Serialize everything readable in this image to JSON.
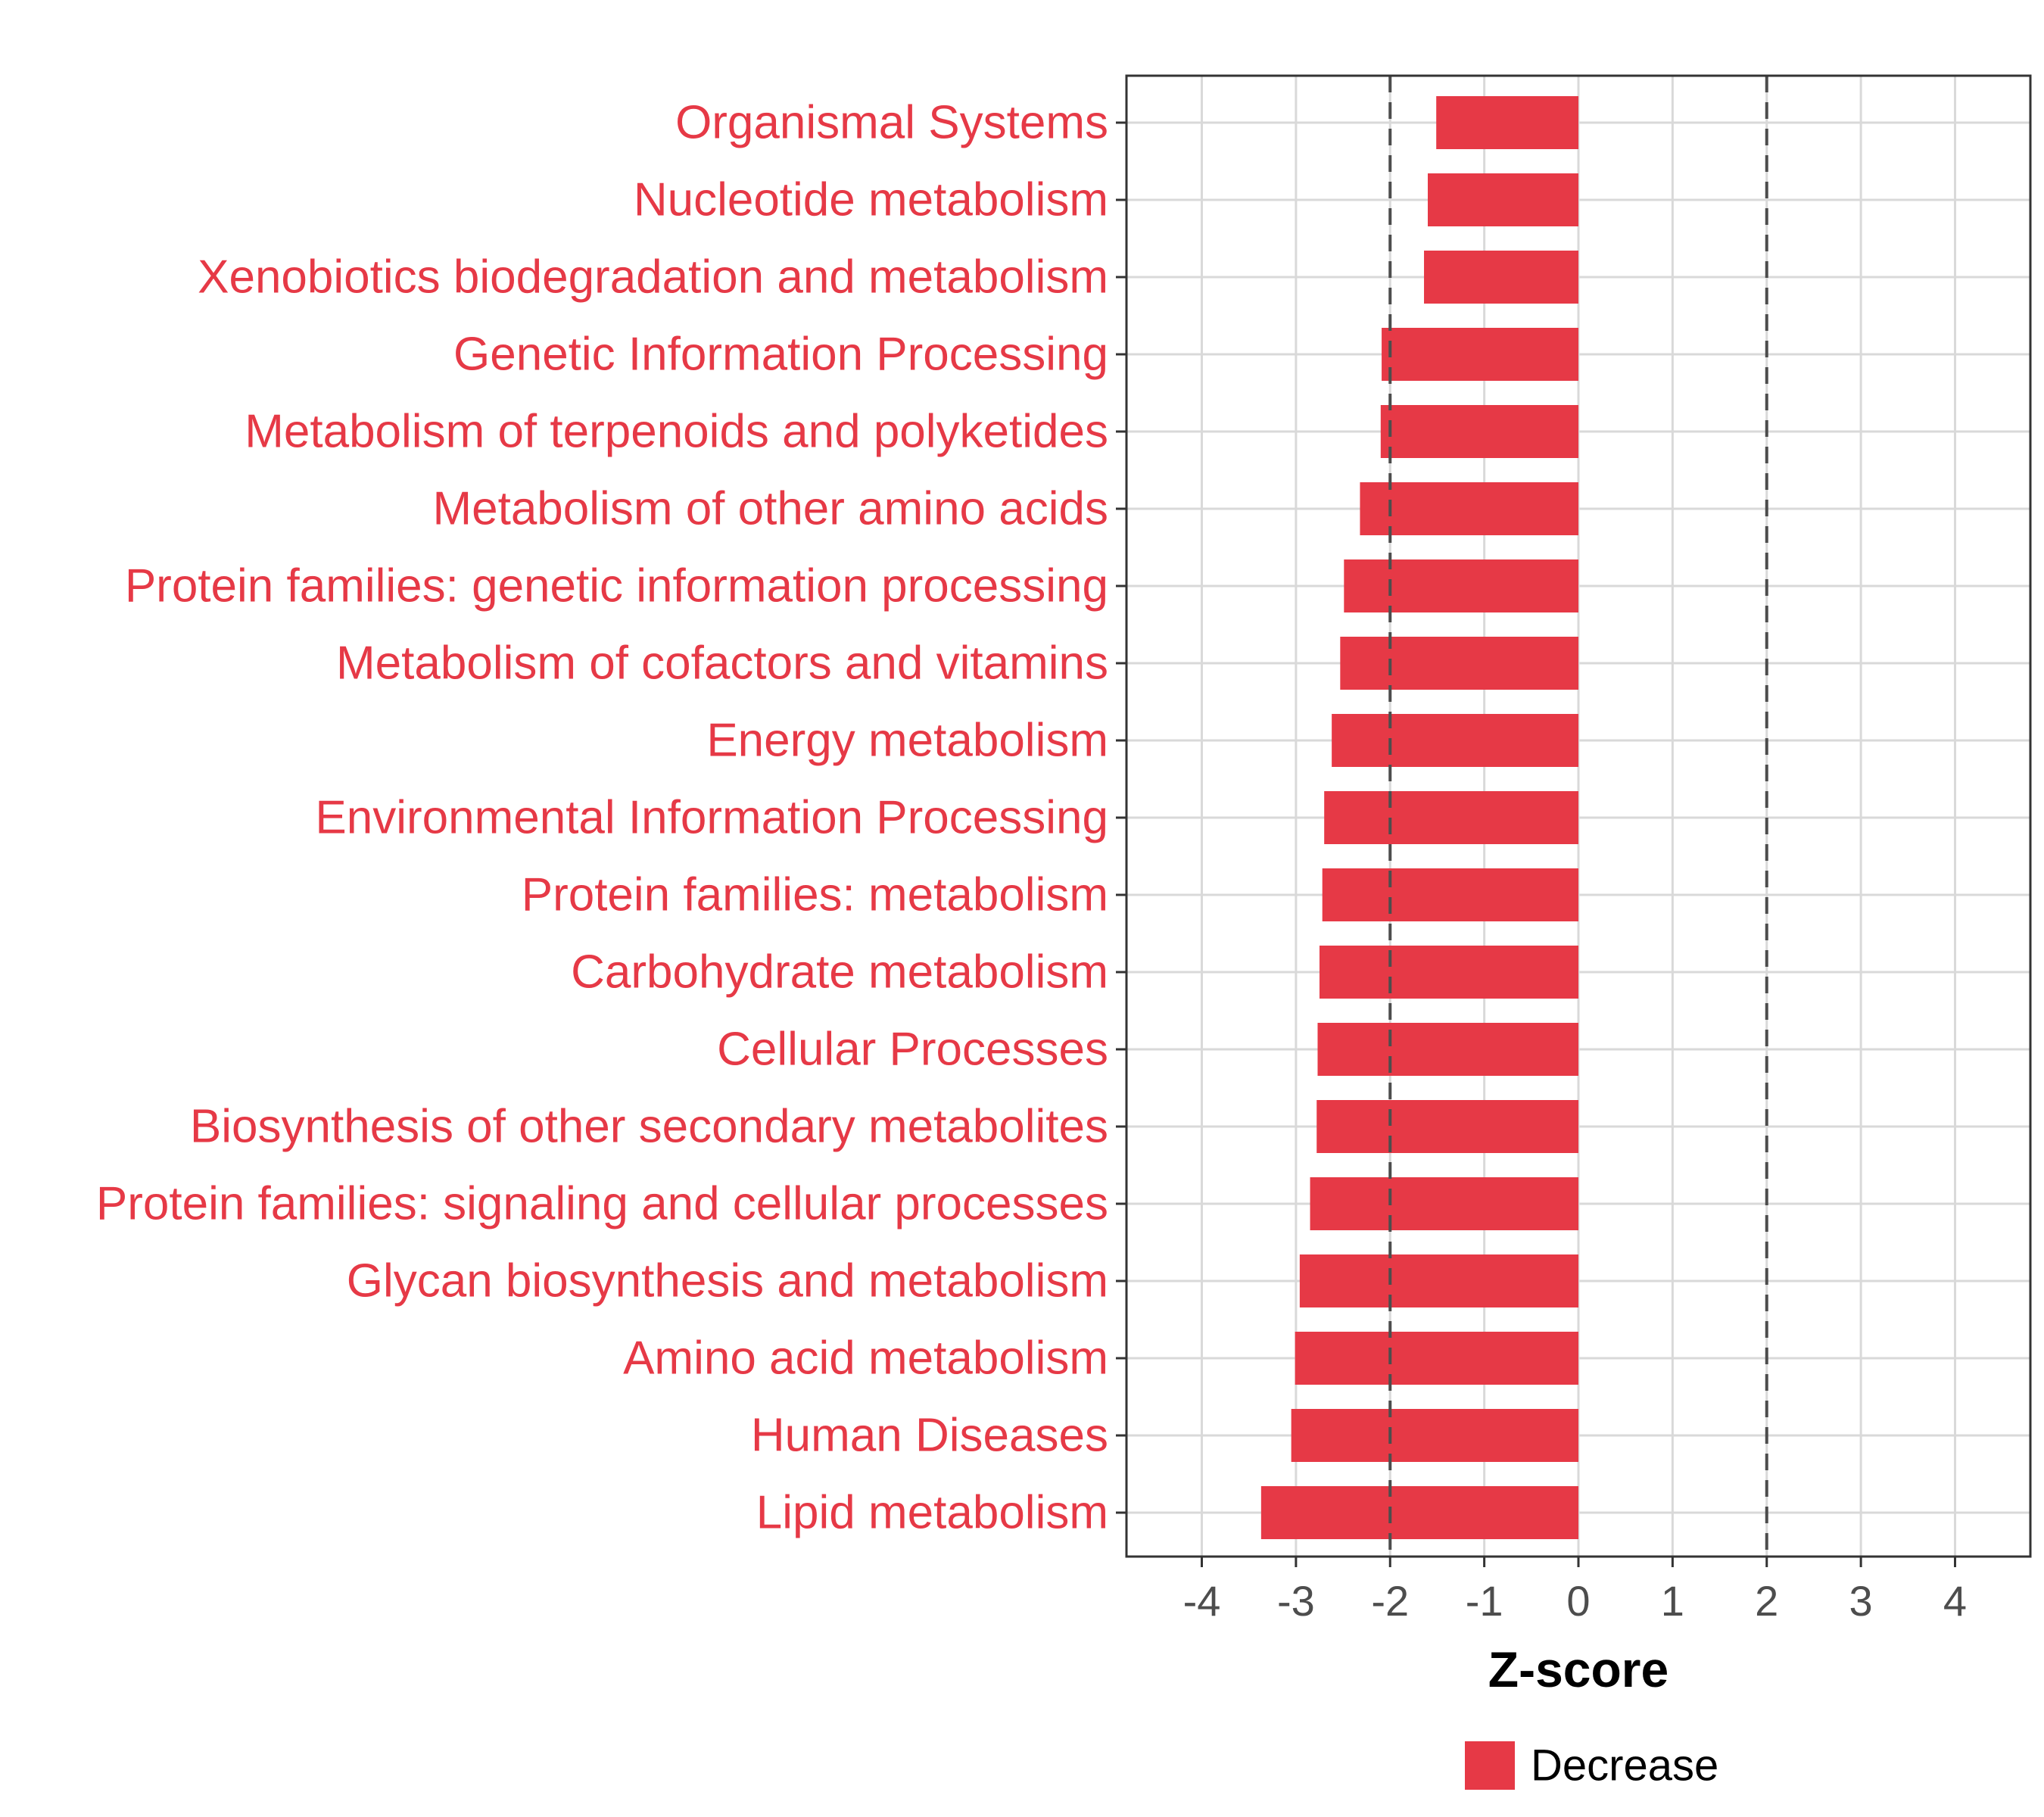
{
  "chart_data": {
    "type": "bar",
    "orientation": "horizontal",
    "categories": [
      "Organismal Systems",
      "Nucleotide metabolism",
      "Xenobiotics biodegradation and metabolism",
      "Genetic Information Processing",
      "Metabolism of terpenoids and polyketides",
      "Metabolism of other amino acids",
      "Protein families: genetic information processing",
      "Metabolism of cofactors and vitamins",
      "Energy metabolism",
      "Environmental Information Processing",
      "Protein families: metabolism",
      "Carbohydrate metabolism",
      "Cellular Processes",
      "Biosynthesis of other secondary metabolites",
      "Protein families: signaling and cellular processes",
      "Glycan biosynthesis and metabolism",
      "Amino acid metabolism",
      "Human Diseases",
      "Lipid metabolism"
    ],
    "series": [
      {
        "name": "Decrease",
        "color": "#e63946",
        "values": [
          -1.51,
          -1.6,
          -1.64,
          -2.09,
          -2.1,
          -2.32,
          -2.49,
          -2.53,
          -2.62,
          -2.7,
          -2.72,
          -2.75,
          -2.77,
          -2.78,
          -2.85,
          -2.96,
          -3.01,
          -3.05,
          -3.37
        ]
      }
    ],
    "xlabel": "Z-score",
    "ylabel": "",
    "xlim": [
      -4.8,
      4.8
    ],
    "xticks": [
      "-4",
      "-3",
      "-2",
      "-1",
      "0",
      "1",
      "2",
      "3",
      "4"
    ],
    "reference_lines": [
      -2,
      2
    ],
    "grid": true,
    "legend": {
      "position": "bottom",
      "entries": [
        "Decrease"
      ]
    },
    "colors": {
      "bar": "#e63946",
      "category_label": "#e63946",
      "grid": "#d9d9d9",
      "reference_line": "#4d4d4d",
      "panel_border": "#333333",
      "tick_label": "#4d4d4d"
    }
  }
}
